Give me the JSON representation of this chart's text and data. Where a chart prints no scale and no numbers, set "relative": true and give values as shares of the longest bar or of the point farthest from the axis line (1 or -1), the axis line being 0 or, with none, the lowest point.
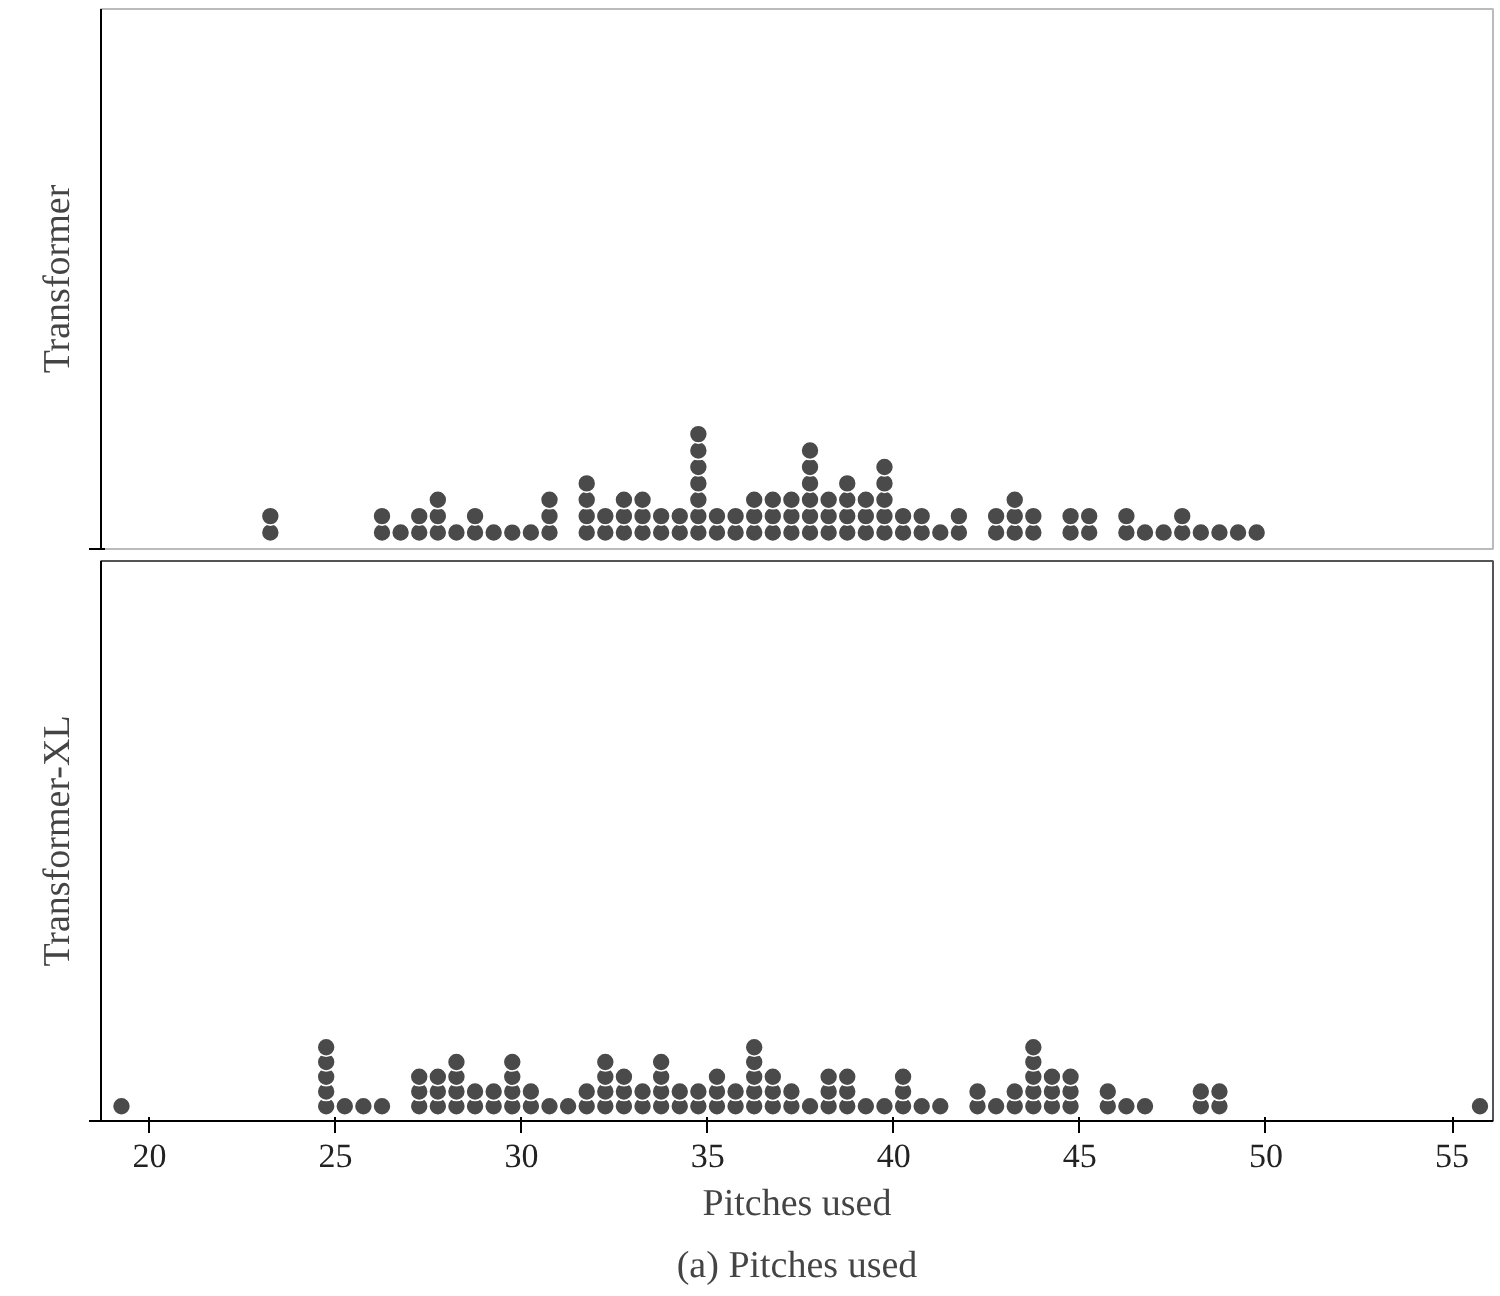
{
  "chart_data": [
    {
      "type": "scatter",
      "ylabel": "Transformer",
      "xlim": [
        18.7,
        56.1
      ],
      "relative": true,
      "tick_labels": false,
      "grid": false,
      "marker": "circle",
      "series": [
        {
          "color": "#4a4a4a",
          "x": [
            23.25,
            23.25,
            26.25,
            26.25,
            26.75,
            27.25,
            27.25,
            27.75,
            27.75,
            27.75,
            28.25,
            28.75,
            28.75,
            29.25,
            29.75,
            30.25,
            30.75,
            30.75,
            30.75,
            31.75,
            31.75,
            31.75,
            31.75,
            32.25,
            32.25,
            32.75,
            32.75,
            32.75,
            33.25,
            33.25,
            33.25,
            33.75,
            33.75,
            34.25,
            34.25,
            34.75,
            34.75,
            34.75,
            34.75,
            34.75,
            34.75,
            34.75,
            35.25,
            35.25,
            35.75,
            35.75,
            36.25,
            36.25,
            36.25,
            36.75,
            36.75,
            36.75,
            37.25,
            37.25,
            37.25,
            37.75,
            37.75,
            37.75,
            37.75,
            37.75,
            37.75,
            38.25,
            38.25,
            38.25,
            38.75,
            38.75,
            38.75,
            38.75,
            39.25,
            39.25,
            39.25,
            39.75,
            39.75,
            39.75,
            39.75,
            39.75,
            40.25,
            40.25,
            40.75,
            40.75,
            41.25,
            41.75,
            41.75,
            42.75,
            42.75,
            43.25,
            43.25,
            43.25,
            43.75,
            43.75,
            44.75,
            44.75,
            45.25,
            45.25,
            46.25,
            46.25,
            46.75,
            47.25,
            47.75,
            47.75,
            48.25,
            48.75,
            49.25,
            49.75
          ],
          "values": [
            0.143,
            0.286,
            0.143,
            0.286,
            0.143,
            0.143,
            0.286,
            0.143,
            0.286,
            0.429,
            0.143,
            0.143,
            0.286,
            0.143,
            0.143,
            0.143,
            0.143,
            0.286,
            0.429,
            0.143,
            0.286,
            0.429,
            0.571,
            0.143,
            0.286,
            0.143,
            0.286,
            0.429,
            0.143,
            0.286,
            0.429,
            0.143,
            0.286,
            0.143,
            0.286,
            0.143,
            0.286,
            0.429,
            0.571,
            0.714,
            0.857,
            1,
            0.143,
            0.286,
            0.143,
            0.286,
            0.143,
            0.286,
            0.429,
            0.143,
            0.286,
            0.429,
            0.143,
            0.286,
            0.429,
            0.143,
            0.286,
            0.429,
            0.571,
            0.714,
            0.857,
            0.143,
            0.286,
            0.429,
            0.143,
            0.286,
            0.429,
            0.571,
            0.143,
            0.286,
            0.429,
            0.143,
            0.286,
            0.429,
            0.571,
            0.714,
            0.143,
            0.286,
            0.143,
            0.286,
            0.143,
            0.143,
            0.286,
            0.143,
            0.286,
            0.143,
            0.286,
            0.429,
            0.143,
            0.286,
            0.143,
            0.286,
            0.143,
            0.286,
            0.143,
            0.286,
            0.143,
            0.143,
            0.143,
            0.286,
            0.143,
            0.143,
            0.143,
            0.143
          ]
        }
      ]
    },
    {
      "type": "scatter",
      "ylabel": "Transformer-XL",
      "xlabel": "Pitches used",
      "annotations": [
        "(a) Pitches used"
      ],
      "xlim": [
        18.7,
        56.1
      ],
      "xticks": [
        20,
        25,
        30,
        35,
        40,
        45,
        50,
        55
      ],
      "relative": true,
      "tick_labels": "x",
      "grid": false,
      "marker": "circle",
      "series": [
        {
          "color": "#4a4a4a",
          "x": [
            19.25,
            24.75,
            24.75,
            24.75,
            24.75,
            24.75,
            25.25,
            25.75,
            26.25,
            27.25,
            27.25,
            27.25,
            27.75,
            27.75,
            27.75,
            28.25,
            28.25,
            28.25,
            28.25,
            28.75,
            28.75,
            29.25,
            29.25,
            29.75,
            29.75,
            29.75,
            29.75,
            30.25,
            30.25,
            30.75,
            31.25,
            31.75,
            31.75,
            32.25,
            32.25,
            32.25,
            32.25,
            32.75,
            32.75,
            32.75,
            33.25,
            33.25,
            33.75,
            33.75,
            33.75,
            33.75,
            34.25,
            34.25,
            34.75,
            34.75,
            35.25,
            35.25,
            35.25,
            35.75,
            35.75,
            36.25,
            36.25,
            36.25,
            36.25,
            36.25,
            36.75,
            36.75,
            36.75,
            37.25,
            37.25,
            37.75,
            38.25,
            38.25,
            38.25,
            38.75,
            38.75,
            38.75,
            39.25,
            39.75,
            40.25,
            40.25,
            40.25,
            40.75,
            41.25,
            42.25,
            42.25,
            42.75,
            43.25,
            43.25,
            43.75,
            43.75,
            43.75,
            43.75,
            43.75,
            44.25,
            44.25,
            44.25,
            44.75,
            44.75,
            44.75,
            45.75,
            45.75,
            46.25,
            46.75,
            48.25,
            48.25,
            48.75,
            48.75,
            55.75
          ],
          "values": [
            0.2,
            0.2,
            0.4,
            0.6,
            0.8,
            1,
            0.2,
            0.2,
            0.2,
            0.2,
            0.4,
            0.6,
            0.2,
            0.4,
            0.6,
            0.2,
            0.4,
            0.6,
            0.8,
            0.2,
            0.4,
            0.2,
            0.4,
            0.2,
            0.4,
            0.6,
            0.8,
            0.2,
            0.4,
            0.2,
            0.2,
            0.2,
            0.4,
            0.2,
            0.4,
            0.6,
            0.8,
            0.2,
            0.4,
            0.6,
            0.2,
            0.4,
            0.2,
            0.4,
            0.6,
            0.8,
            0.2,
            0.4,
            0.2,
            0.4,
            0.2,
            0.4,
            0.6,
            0.2,
            0.4,
            0.2,
            0.4,
            0.6,
            0.8,
            1,
            0.2,
            0.4,
            0.6,
            0.2,
            0.4,
            0.2,
            0.2,
            0.4,
            0.6,
            0.2,
            0.4,
            0.6,
            0.2,
            0.2,
            0.2,
            0.4,
            0.6,
            0.2,
            0.2,
            0.2,
            0.4,
            0.2,
            0.2,
            0.4,
            0.2,
            0.4,
            0.6,
            0.8,
            1,
            0.2,
            0.4,
            0.6,
            0.2,
            0.4,
            0.6,
            0.2,
            0.4,
            0.2,
            0.2,
            0.2,
            0.4,
            0.2,
            0.4,
            0.2
          ]
        }
      ]
    }
  ]
}
